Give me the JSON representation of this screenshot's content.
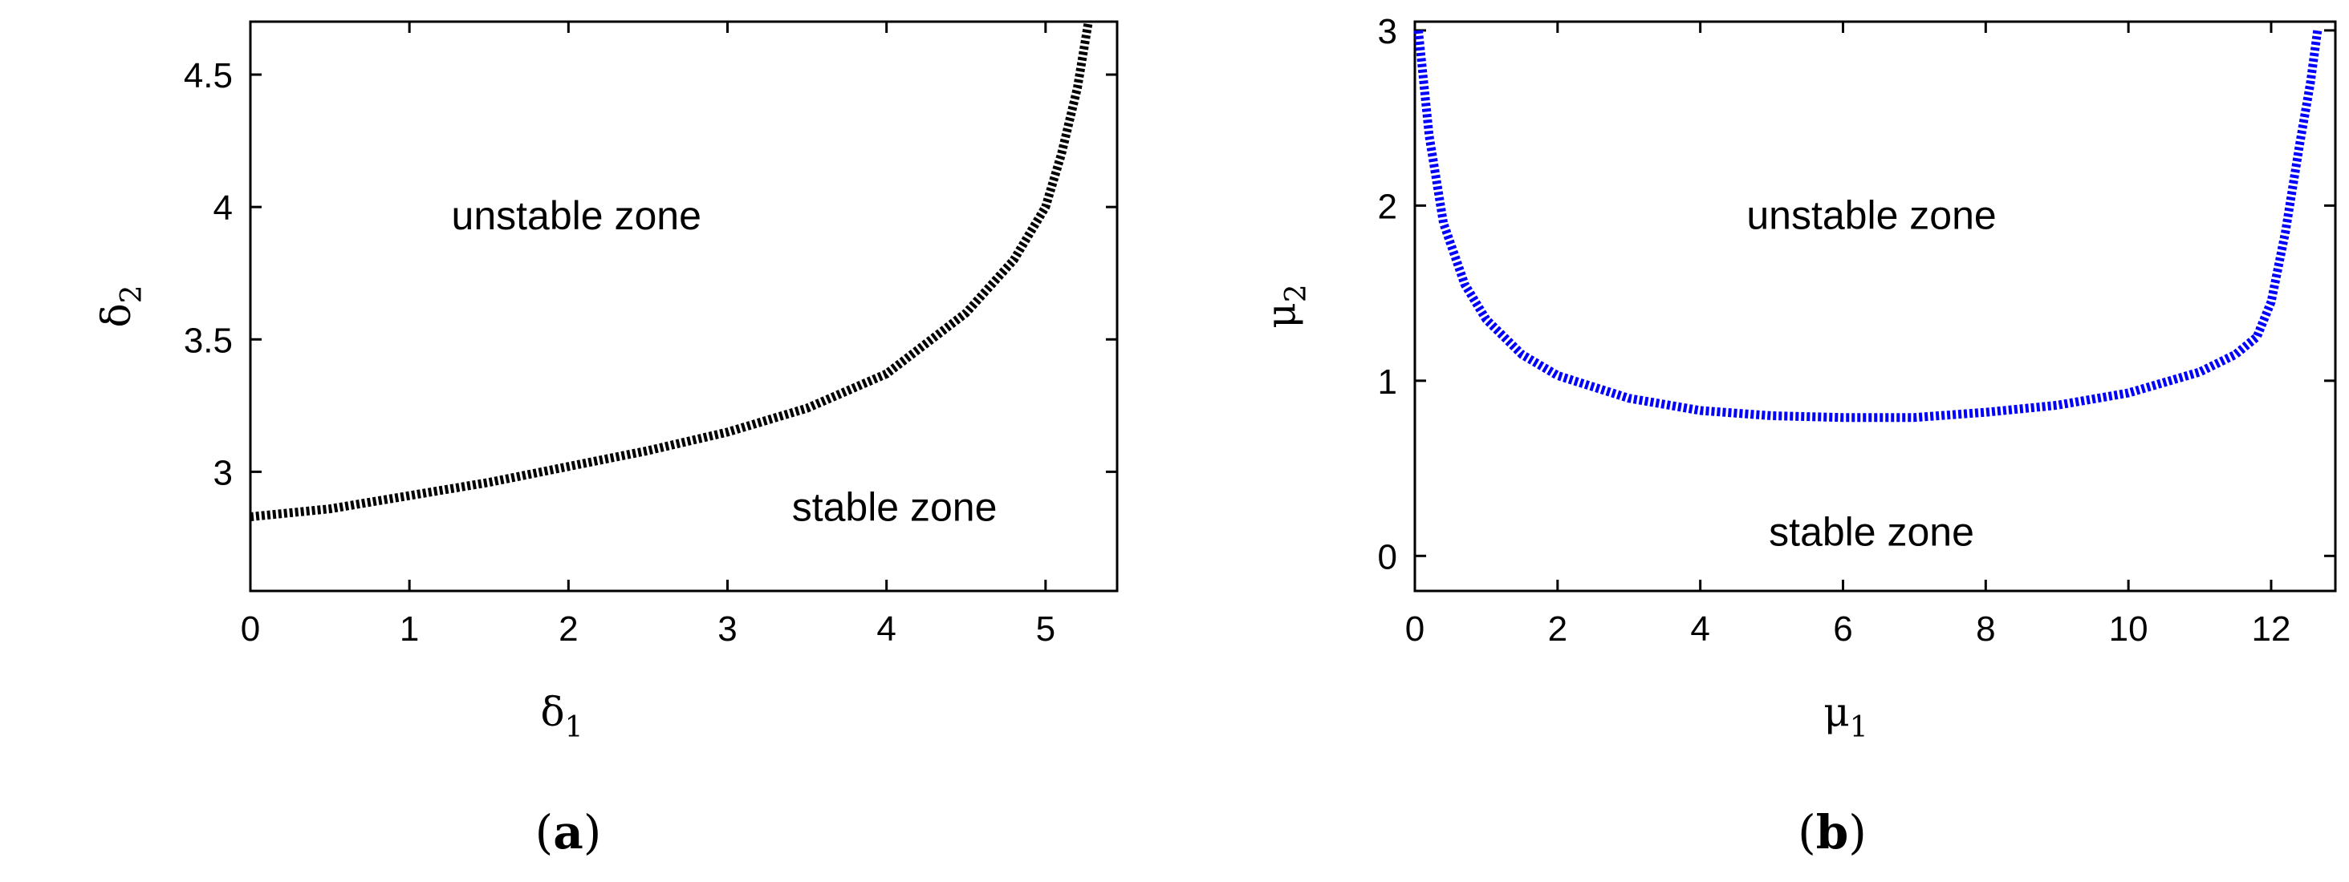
{
  "chart_data": [
    {
      "panel": "(a)",
      "panel_letter": "a",
      "type": "line",
      "xlabel": "δ",
      "xlabel_sub": "1",
      "ylabel": "δ",
      "ylabel_sub": "2",
      "xlim": [
        0,
        5.45
      ],
      "ylim": [
        2.55,
        4.7
      ],
      "xticks": [
        0,
        1,
        2,
        3,
        4,
        5
      ],
      "yticks": [
        3,
        3.5,
        4,
        4.5
      ],
      "line_color": "#000000",
      "line_style": "dotted",
      "grid": false,
      "annotations": [
        {
          "text": "unstable zone",
          "x": 2.05,
          "y": 3.97
        },
        {
          "text": "stable zone",
          "x": 4.05,
          "y": 2.87
        }
      ],
      "series": [
        {
          "x": [
            0,
            0.5,
            1.0,
            1.5,
            2.0,
            2.5,
            3.0,
            3.5,
            4.0,
            4.5,
            4.8,
            5.0,
            5.1,
            5.2,
            5.27
          ],
          "y": [
            2.83,
            2.86,
            2.91,
            2.96,
            3.02,
            3.08,
            3.15,
            3.24,
            3.37,
            3.6,
            3.8,
            4.0,
            4.2,
            4.45,
            4.7
          ]
        }
      ]
    },
    {
      "panel": "(b)",
      "panel_letter": "b",
      "type": "line",
      "xlabel": "μ",
      "xlabel_sub": "1",
      "ylabel": "μ",
      "ylabel_sub": "2",
      "xlim": [
        0,
        12.9
      ],
      "ylim": [
        -0.2,
        3.05
      ],
      "xticks": [
        0,
        2,
        4,
        6,
        8,
        10,
        12
      ],
      "yticks": [
        0,
        1,
        2,
        3
      ],
      "line_color": "#0000ff",
      "line_style": "dotted",
      "grid": false,
      "annotations": [
        {
          "text": "unstable zone",
          "x": 6.4,
          "y": 1.95
        },
        {
          "text": "stable zone",
          "x": 6.4,
          "y": 0.14
        }
      ],
      "series": [
        {
          "x": [
            0.05,
            0.2,
            0.4,
            0.7,
            1.0,
            1.5,
            2.0,
            3.0,
            4.0,
            5.0,
            6.0,
            7.0,
            8.0,
            9.0,
            10.0,
            11.0,
            11.5,
            11.8,
            12.0,
            12.2,
            12.4,
            12.55,
            12.65
          ],
          "y": [
            3.0,
            2.4,
            1.9,
            1.55,
            1.35,
            1.15,
            1.03,
            0.9,
            0.83,
            0.8,
            0.79,
            0.79,
            0.82,
            0.86,
            0.93,
            1.05,
            1.15,
            1.25,
            1.45,
            1.85,
            2.35,
            2.7,
            3.0
          ]
        }
      ]
    }
  ]
}
